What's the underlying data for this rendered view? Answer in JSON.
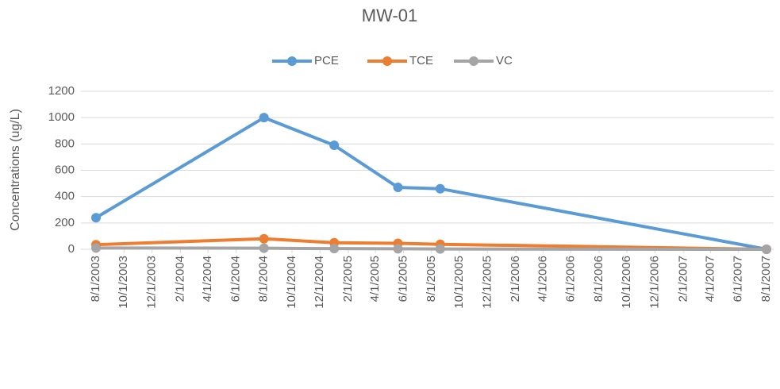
{
  "chart_data": {
    "type": "line",
    "title": "MW-01",
    "y_label": "Concentrations (ug/L)",
    "x": [
      "8/1/2003",
      "8/1/2004",
      "1/1/2005",
      "5/20/2005",
      "8/20/2005",
      "8/1/2007"
    ],
    "series": [
      {
        "name": "PCE",
        "color": "#5b9bd5",
        "values": [
          240,
          1000,
          790,
          470,
          460,
          0
        ]
      },
      {
        "name": "TCE",
        "color": "#ed7d31",
        "values": [
          35,
          80,
          50,
          45,
          38,
          0
        ]
      },
      {
        "name": "VC",
        "color": "#a5a5a5",
        "values": [
          10,
          8,
          5,
          4,
          2,
          0
        ]
      }
    ],
    "xlim": [
      "8/1/2003",
      "8/1/2007"
    ],
    "xticks": [
      "8/1/2003",
      "10/1/2003",
      "12/1/2003",
      "2/1/2004",
      "4/1/2004",
      "6/1/2004",
      "8/1/2004",
      "10/1/2004",
      "12/1/2004",
      "2/1/2005",
      "4/1/2005",
      "6/1/2005",
      "8/1/2005",
      "10/1/2005",
      "12/1/2005",
      "2/1/2006",
      "4/1/2006",
      "6/1/2006",
      "8/1/2006",
      "10/1/2006",
      "12/1/2006",
      "2/1/2007",
      "4/1/2007",
      "6/1/2007",
      "8/1/2007"
    ],
    "ylim": [
      0,
      1200
    ],
    "yticks": [
      0,
      200,
      400,
      600,
      800,
      1000,
      1200
    ],
    "grid": true,
    "legend": "top"
  }
}
